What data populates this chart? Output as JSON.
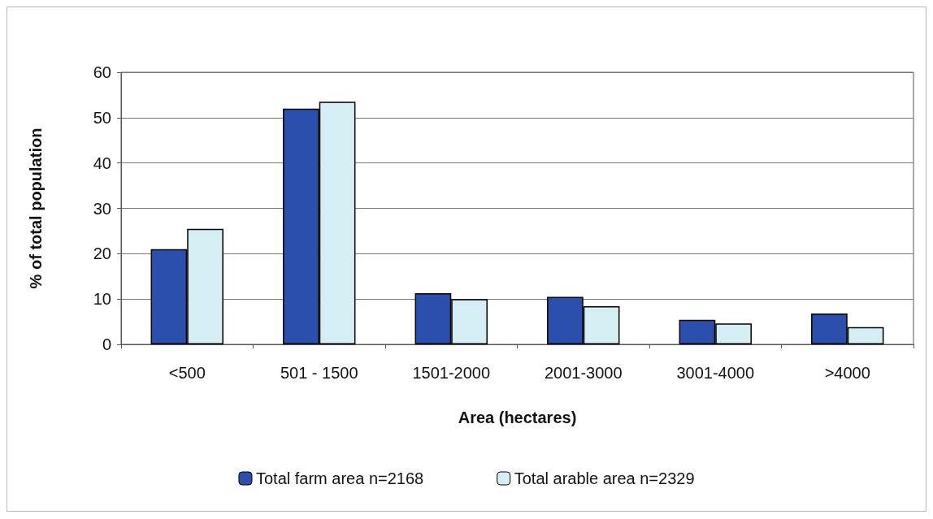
{
  "chart_data": {
    "type": "bar",
    "xlabel": "Area (hectares)",
    "ylabel": "% of total population",
    "categories": [
      "<500",
      "501 - 1500",
      "1501-2000",
      "2001-3000",
      "3001-4000",
      ">4000"
    ],
    "series": [
      {
        "name": "Total farm area n=2168",
        "color": "#2a4fad",
        "values": [
          21,
          52,
          11.3,
          10.5,
          5.4,
          6.8
        ]
      },
      {
        "name": "Total arable area n=2329",
        "color": "#d4eef3",
        "values": [
          25.5,
          53.5,
          10,
          8.4,
          4.6,
          3.8
        ]
      }
    ],
    "ylim": [
      0,
      60
    ],
    "yticks": [
      0,
      10,
      20,
      30,
      40,
      50,
      60
    ],
    "grid": "y",
    "legend": "bottom"
  }
}
